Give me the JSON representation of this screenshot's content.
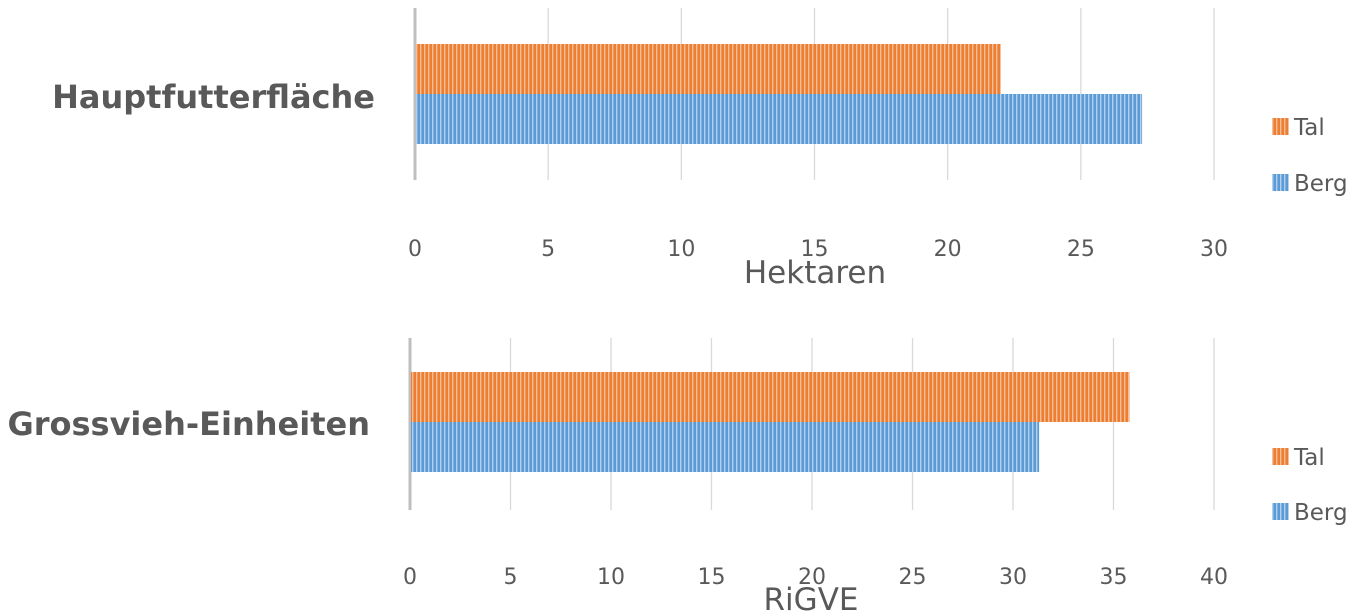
{
  "chart_data": [
    {
      "type": "bar",
      "orientation": "horizontal",
      "category": "Hauptfutterfläche",
      "xlabel": "Hektaren",
      "xlim": [
        0,
        30
      ],
      "ticks": [
        0,
        5,
        10,
        15,
        20,
        25,
        30
      ],
      "grid": true,
      "legend_position": "right",
      "series": [
        {
          "name": "Tal",
          "color": "#ED7D31",
          "value": 22
        },
        {
          "name": "Berg",
          "color": "#5B9BD5",
          "value": 27.3
        }
      ]
    },
    {
      "type": "bar",
      "orientation": "horizontal",
      "category": "Grossvieh-Einheiten",
      "xlabel": "RiGVE",
      "xlim": [
        0,
        40
      ],
      "ticks": [
        0,
        5,
        10,
        15,
        20,
        25,
        30,
        35,
        40
      ],
      "grid": true,
      "legend_position": "right",
      "series": [
        {
          "name": "Tal",
          "color": "#ED7D31",
          "value": 35.8
        },
        {
          "name": "Berg",
          "color": "#5B9BD5",
          "value": 31.3
        }
      ]
    }
  ]
}
